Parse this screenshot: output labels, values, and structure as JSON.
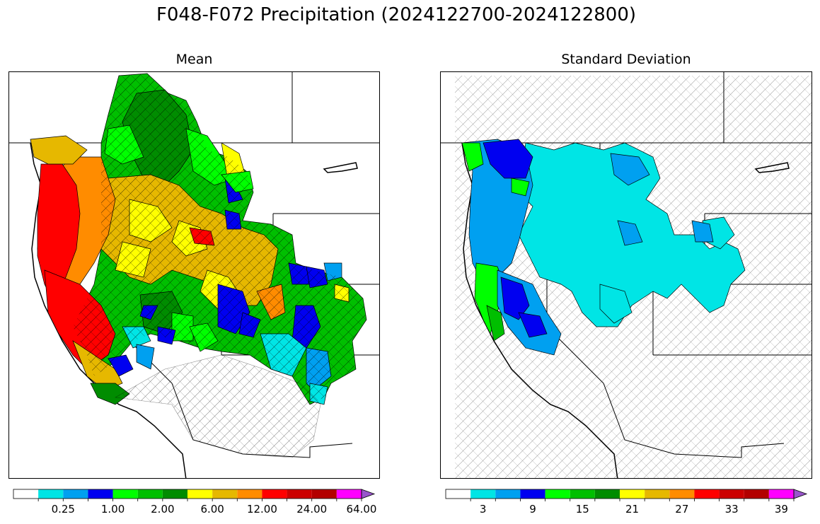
{
  "title": "F048-F072 Precipitation (2024122700-2024122800)",
  "panels": [
    {
      "title": "Mean",
      "colorbar": {
        "colors": [
          "#ffffff",
          "#00e5e5",
          "#00a0f0",
          "#0000f0",
          "#00ff00",
          "#00bf00",
          "#008c00",
          "#ffff00",
          "#e6b800",
          "#ff8c00",
          "#ff0000",
          "#cc0000",
          "#b30000",
          "#ff00ff",
          "#9955cc"
        ],
        "tick_labels": [
          "0.25",
          "1.00",
          "2.00",
          "6.00",
          "12.00",
          "24.00",
          "64.00"
        ],
        "tick_label_bins": [
          2,
          4,
          6,
          8,
          10,
          12,
          14
        ]
      }
    },
    {
      "title": "Standard Deviation",
      "colorbar": {
        "colors": [
          "#ffffff",
          "#00e5e5",
          "#00a0f0",
          "#0000f0",
          "#00ff00",
          "#00bf00",
          "#008c00",
          "#ffff00",
          "#e6b800",
          "#ff8c00",
          "#ff0000",
          "#cc0000",
          "#b30000",
          "#ff00ff",
          "#9955cc"
        ],
        "tick_labels": [
          "3",
          "9",
          "15",
          "21",
          "27",
          "33",
          "39"
        ],
        "tick_label_bins": [
          1.5,
          3.5,
          5.5,
          7.5,
          9.5,
          11.5,
          13.5
        ]
      }
    }
  ]
}
